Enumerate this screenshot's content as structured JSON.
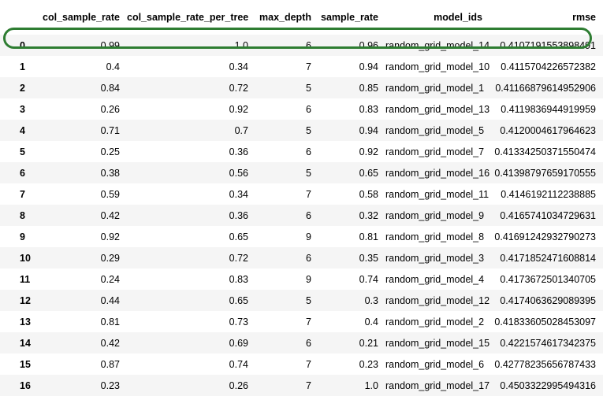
{
  "table": {
    "columns": [
      "",
      "col_sample_rate",
      "col_sample_rate_per_tree",
      "max_depth",
      "sample_rate",
      "model_ids",
      "rmse"
    ],
    "rows": [
      [
        "0",
        "0.99",
        "1.0",
        "6",
        "0.96",
        "random_grid_model_14",
        "0.4107191553898491"
      ],
      [
        "1",
        "0.4",
        "0.34",
        "7",
        "0.94",
        "random_grid_model_10",
        "0.4115704226572382"
      ],
      [
        "2",
        "0.84",
        "0.72",
        "5",
        "0.85",
        "random_grid_model_1",
        "0.41166879614952906"
      ],
      [
        "3",
        "0.26",
        "0.92",
        "6",
        "0.83",
        "random_grid_model_13",
        "0.4119836944919959"
      ],
      [
        "4",
        "0.71",
        "0.7",
        "5",
        "0.94",
        "random_grid_model_5",
        "0.4120004617964623"
      ],
      [
        "5",
        "0.25",
        "0.36",
        "6",
        "0.92",
        "random_grid_model_7",
        "0.41334250371550474"
      ],
      [
        "6",
        "0.38",
        "0.56",
        "5",
        "0.65",
        "random_grid_model_16",
        "0.41398797659170555"
      ],
      [
        "7",
        "0.59",
        "0.34",
        "7",
        "0.58",
        "random_grid_model_11",
        "0.4146192112238885"
      ],
      [
        "8",
        "0.42",
        "0.36",
        "6",
        "0.32",
        "random_grid_model_9",
        "0.4165741034729631"
      ],
      [
        "9",
        "0.92",
        "0.65",
        "9",
        "0.81",
        "random_grid_model_8",
        "0.41691242932790273"
      ],
      [
        "10",
        "0.29",
        "0.72",
        "6",
        "0.35",
        "random_grid_model_3",
        "0.4171852471608814"
      ],
      [
        "11",
        "0.24",
        "0.83",
        "9",
        "0.74",
        "random_grid_model_4",
        "0.4173672501340705"
      ],
      [
        "12",
        "0.44",
        "0.65",
        "5",
        "0.3",
        "random_grid_model_12",
        "0.4174063629089395"
      ],
      [
        "13",
        "0.81",
        "0.73",
        "7",
        "0.4",
        "random_grid_model_2",
        "0.41833605028453097"
      ],
      [
        "14",
        "0.42",
        "0.69",
        "6",
        "0.21",
        "random_grid_model_15",
        "0.4221574617342375"
      ],
      [
        "15",
        "0.87",
        "0.74",
        "7",
        "0.23",
        "random_grid_model_6",
        "0.42778235656787433"
      ],
      [
        "16",
        "0.23",
        "0.26",
        "7",
        "1.0",
        "random_grid_model_17",
        "0.4503322995494316"
      ]
    ]
  },
  "highlight": {
    "row_index": "0",
    "color": "#2e7d32"
  }
}
